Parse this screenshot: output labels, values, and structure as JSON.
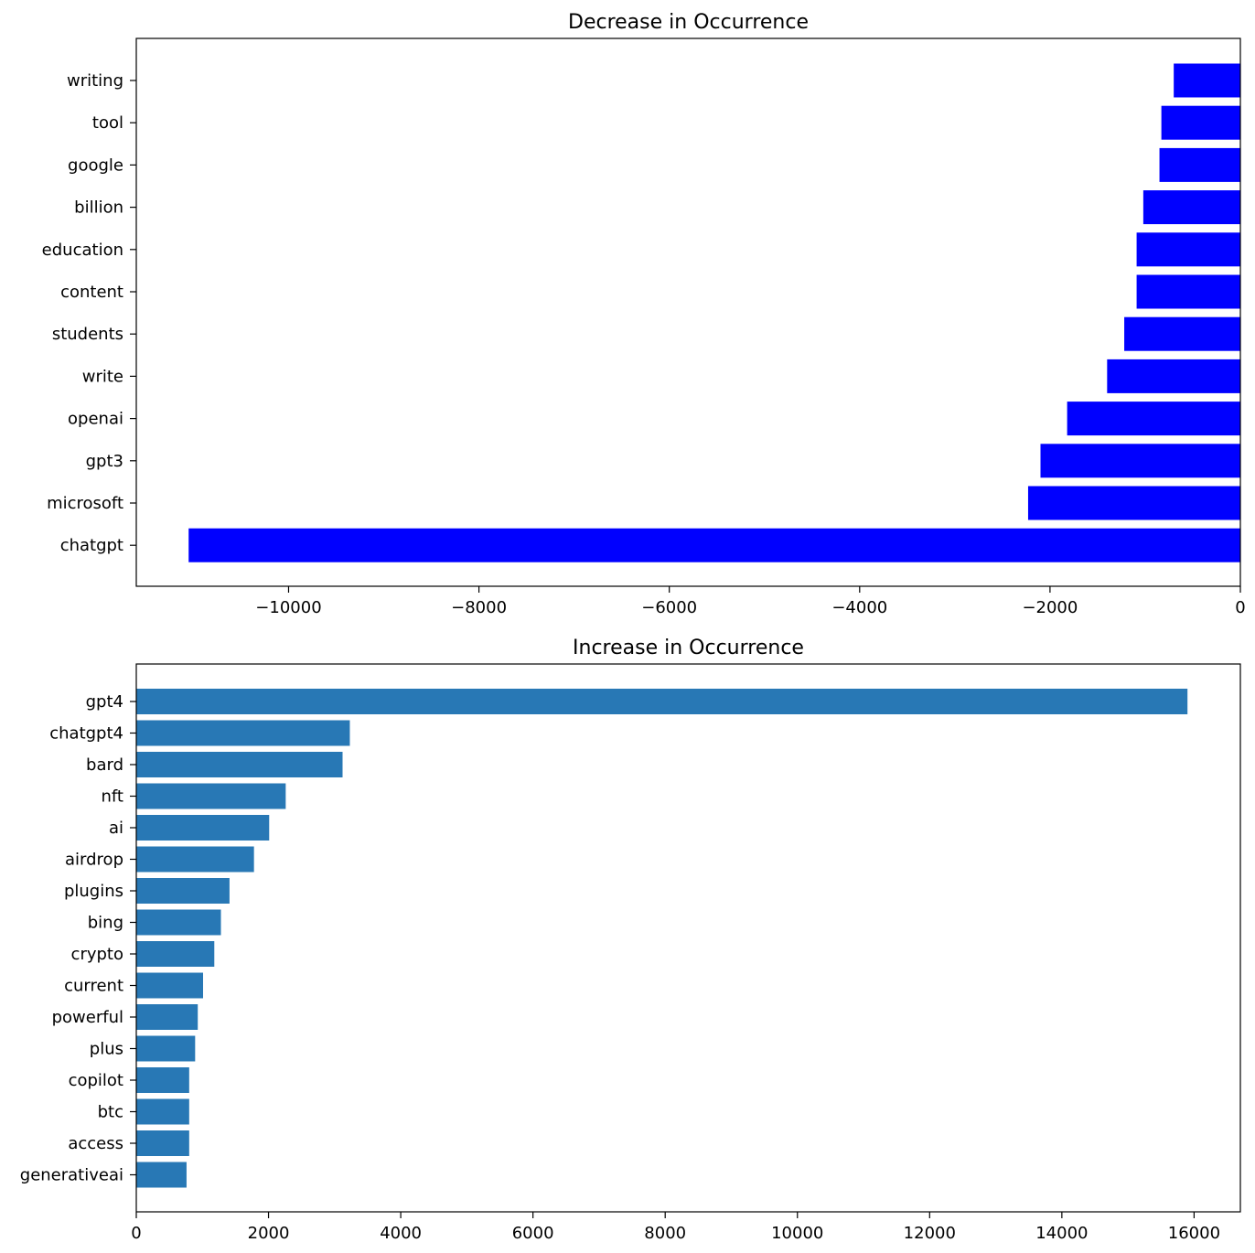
{
  "chart_data": [
    {
      "type": "bar",
      "orientation": "horizontal",
      "title": "Decrease in Occurrence",
      "xlabel": "",
      "ylabel": "",
      "color": "#0000ff",
      "categories": [
        "writing",
        "tool",
        "google",
        "billion",
        "education",
        "content",
        "students",
        "write",
        "openai",
        "gpt3",
        "microsoft",
        "chatgpt"
      ],
      "values": [
        -700,
        -830,
        -850,
        -1020,
        -1090,
        -1090,
        -1220,
        -1400,
        -1820,
        -2100,
        -2230,
        -11050
      ],
      "xlim": [
        -11600,
        0
      ],
      "xticks": [
        -10000,
        -8000,
        -6000,
        -4000,
        -2000,
        0
      ],
      "xtick_labels": [
        "−10000",
        "−8000",
        "−6000",
        "−4000",
        "−2000",
        "0"
      ],
      "grid": false
    },
    {
      "type": "bar",
      "orientation": "horizontal",
      "title": "Increase in Occurrence",
      "xlabel": "",
      "ylabel": "",
      "color": "#2878b5",
      "categories": [
        "gpt4",
        "chatgpt4",
        "bard",
        "nft",
        "ai",
        "airdrop",
        "plugins",
        "bing",
        "crypto",
        "current",
        "powerful",
        "plus",
        "copilot",
        "btc",
        "access",
        "generativeai"
      ],
      "values": [
        15900,
        3230,
        3120,
        2260,
        2010,
        1780,
        1410,
        1280,
        1180,
        1010,
        930,
        890,
        800,
        800,
        800,
        760
      ],
      "xlim": [
        0,
        16700
      ],
      "xticks": [
        0,
        2000,
        4000,
        6000,
        8000,
        10000,
        12000,
        14000,
        16000
      ],
      "xtick_labels": [
        "0",
        "2000",
        "4000",
        "6000",
        "8000",
        "10000",
        "12000",
        "14000",
        "16000"
      ],
      "grid": false
    }
  ]
}
